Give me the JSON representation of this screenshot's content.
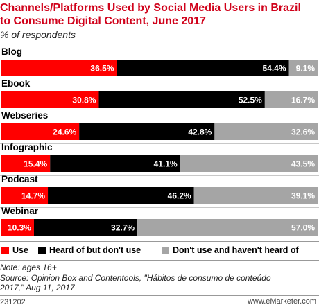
{
  "title": "Channels/Platforms Used by Social Media Users in Brazil to Consume Digital Content, June 2017",
  "subtitle": "% of respondents",
  "chart_data": {
    "type": "bar",
    "orientation": "horizontal",
    "stacked": true,
    "categories": [
      "Blog",
      "Ebook",
      "Webseries",
      "Infographic",
      "Podcast",
      "Webinar"
    ],
    "series": [
      {
        "name": "Use",
        "color": "#ff0000",
        "values": [
          36.5,
          30.8,
          24.6,
          15.4,
          14.7,
          10.3
        ]
      },
      {
        "name": "Heard of but don't use",
        "color": "#000000",
        "values": [
          54.4,
          52.5,
          42.8,
          41.1,
          46.2,
          32.7
        ]
      },
      {
        "name": "Don't use and haven't heard of",
        "color": "#a5a5a5",
        "values": [
          9.1,
          16.7,
          32.6,
          43.5,
          39.1,
          57.0
        ]
      }
    ],
    "value_suffix": "%",
    "legend_position": "bottom-left"
  },
  "note": "Note: ages 16+",
  "source": "Source: Opinion Box and Contentools, \"Hábitos de consumo de conteúdo\n2017,\" Aug 11, 2017",
  "chart_id": "231202",
  "brand": "www.eMarketer.com"
}
